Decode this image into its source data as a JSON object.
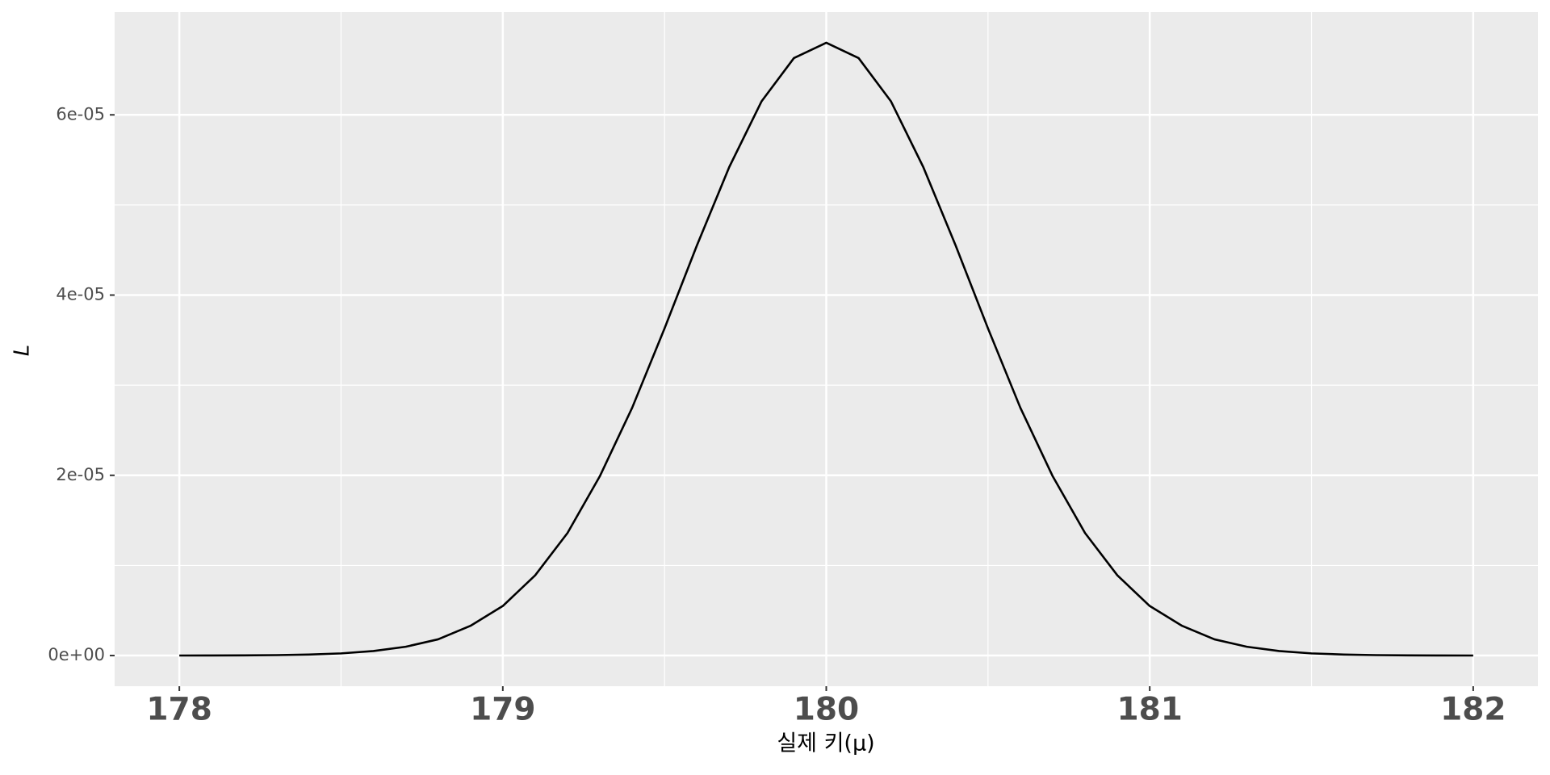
{
  "chart_data": {
    "type": "line",
    "x_label": "실제 키(μ)",
    "y_label": "L",
    "x": [
      178.0,
      178.1,
      178.2,
      178.3,
      178.4,
      178.5,
      178.6,
      178.7,
      178.8,
      178.9,
      179.0,
      179.1,
      179.2,
      179.3,
      179.4,
      179.5,
      179.6,
      179.7,
      179.8,
      179.9,
      180.0,
      180.1,
      180.2,
      180.3,
      180.4,
      180.5,
      180.6,
      180.7,
      180.8,
      180.9,
      181.0,
      181.1,
      181.2,
      181.3,
      181.4,
      181.5,
      181.6,
      181.7,
      181.8,
      181.9,
      182.0
    ],
    "series": [
      {
        "color": "#000000",
        "values": [
          3e-09,
          7.9e-09,
          2e-08,
          4.8e-08,
          1.1e-07,
          2.4e-07,
          5e-07,
          9.8e-07,
          1.8e-06,
          3.3e-06,
          5.5e-06,
          8.9e-06,
          1.36e-05,
          1.99e-05,
          2.75e-05,
          3.63e-05,
          4.55e-05,
          5.42e-05,
          6.15e-05,
          6.63e-05,
          6.8e-05,
          6.63e-05,
          6.15e-05,
          5.42e-05,
          4.55e-05,
          3.63e-05,
          2.75e-05,
          1.99e-05,
          1.36e-05,
          8.9e-06,
          5.5e-06,
          3.3e-06,
          1.8e-06,
          9.8e-07,
          5e-07,
          2.4e-07,
          1.1e-07,
          4.8e-08,
          2e-08,
          7.9e-09,
          3e-09
        ]
      }
    ],
    "xlim": [
      177.8,
      182.2
    ],
    "xticks": [
      178,
      179,
      180,
      181,
      182
    ],
    "ylim": [
      -3.4e-06,
      7.14e-05
    ],
    "yticks": [
      {
        "value": 0,
        "label": "0e+00"
      },
      {
        "value": 2e-05,
        "label": "2e-05"
      },
      {
        "value": 4e-05,
        "label": "4e-05"
      },
      {
        "value": 6e-05,
        "label": "6e-05"
      }
    ],
    "grid": true,
    "background": "#ebebeb"
  }
}
